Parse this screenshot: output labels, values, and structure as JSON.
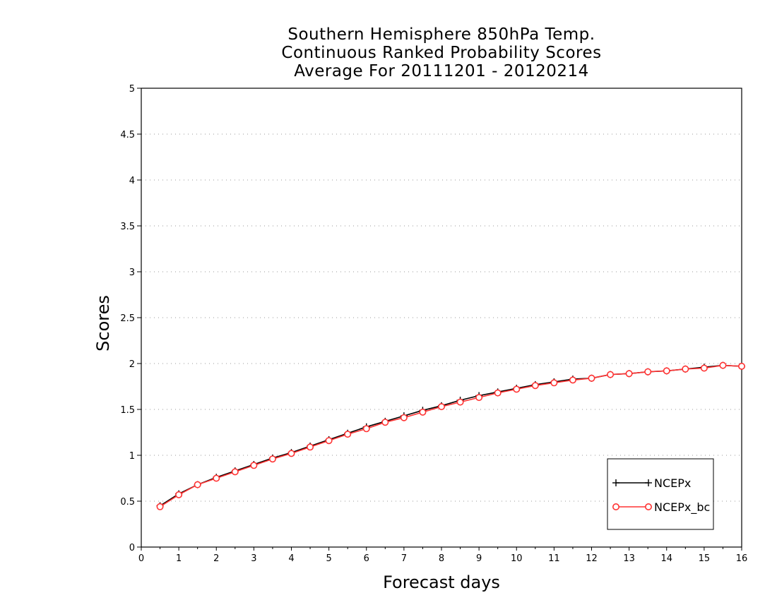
{
  "chart_data": {
    "type": "line",
    "title_lines": [
      "Southern Hemisphere 850hPa Temp.",
      "Continuous Ranked Probability Scores",
      "Average For 20111201 - 20120214"
    ],
    "xlabel": "Forecast days",
    "ylabel": "Scores",
    "xlim": [
      0,
      16
    ],
    "ylim": [
      0,
      5
    ],
    "x_ticks": [
      0,
      1,
      2,
      3,
      4,
      5,
      6,
      7,
      8,
      9,
      10,
      11,
      12,
      13,
      14,
      15,
      16
    ],
    "y_ticks": [
      0,
      0.5,
      1,
      1.5,
      2,
      2.5,
      3,
      3.5,
      4,
      4.5,
      5
    ],
    "y_tick_labels": [
      "0",
      "0.5",
      "1",
      "1.5",
      "2",
      "2.5",
      "3",
      "3.5",
      "4",
      "4.5",
      "5"
    ],
    "grid": "horizontal dotted",
    "legend_position": "bottom-right",
    "x": [
      0.5,
      1,
      1.5,
      2,
      2.5,
      3,
      3.5,
      4,
      4.5,
      5,
      5.5,
      6,
      6.5,
      7,
      7.5,
      8,
      8.5,
      9,
      9.5,
      10,
      10.5,
      11,
      11.5,
      12,
      12.5,
      13,
      13.5,
      14,
      14.5,
      15,
      15.5,
      16
    ],
    "series": [
      {
        "name": "NCEPx",
        "color": "#000000",
        "marker": "plus",
        "values": [
          0.45,
          0.58,
          0.68,
          0.76,
          0.83,
          0.9,
          0.97,
          1.03,
          1.1,
          1.17,
          1.24,
          1.31,
          1.37,
          1.43,
          1.49,
          1.54,
          1.6,
          1.65,
          1.69,
          1.73,
          1.77,
          1.8,
          1.83,
          1.84,
          1.88,
          1.89,
          1.91,
          1.92,
          1.94,
          1.96,
          1.98,
          1.97
        ]
      },
      {
        "name": "NCEPx_bc",
        "color": "#ff3333",
        "marker": "circle",
        "values": [
          0.44,
          0.57,
          0.68,
          0.75,
          0.82,
          0.89,
          0.96,
          1.02,
          1.09,
          1.16,
          1.23,
          1.29,
          1.36,
          1.41,
          1.47,
          1.53,
          1.58,
          1.63,
          1.68,
          1.72,
          1.76,
          1.79,
          1.82,
          1.84,
          1.88,
          1.89,
          1.91,
          1.92,
          1.94,
          1.95,
          1.98,
          1.97
        ]
      }
    ]
  }
}
